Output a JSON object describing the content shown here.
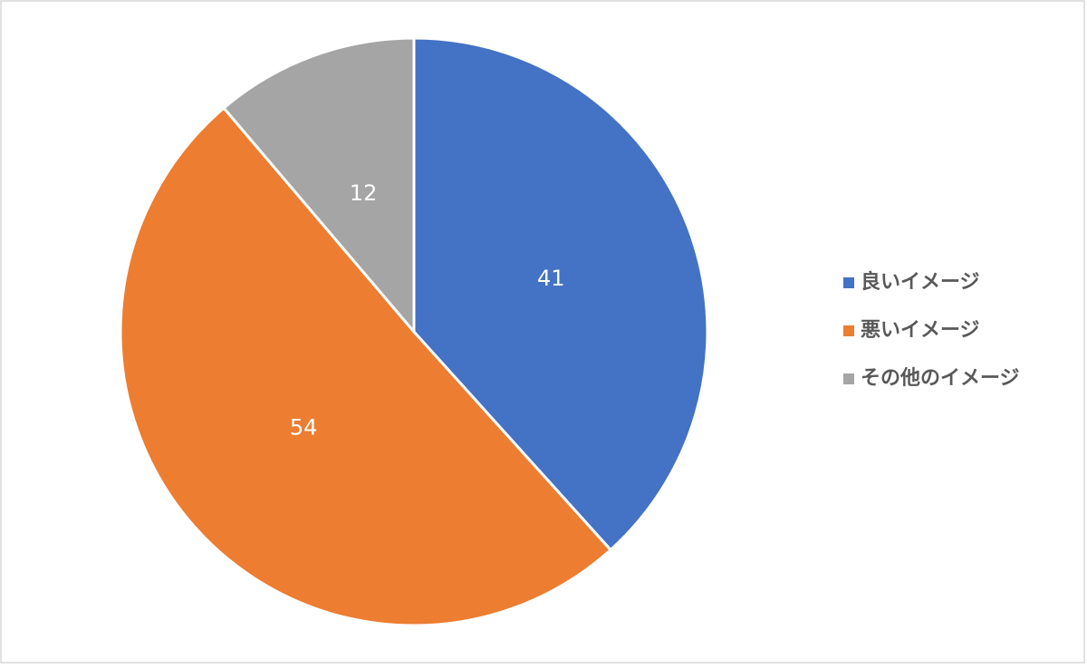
{
  "chart_data": {
    "type": "pie",
    "categories": [
      "良いイメージ",
      "悪いイメージ",
      "その他のイメージ"
    ],
    "values": [
      41,
      54,
      12
    ],
    "colors": [
      "#4472c4",
      "#ed7d31",
      "#a5a5a5"
    ],
    "legend": "right"
  }
}
